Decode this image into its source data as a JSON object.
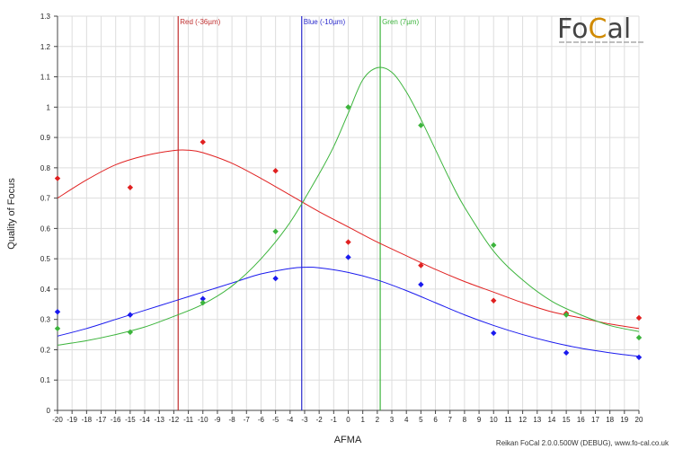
{
  "chart_data": {
    "type": "scatter",
    "xlabel": "AFMA",
    "ylabel": "Quality of Focus",
    "xlim": [
      -20,
      20
    ],
    "ylim": [
      0,
      1.3
    ],
    "xticks": [
      -20,
      -19,
      -18,
      -17,
      -16,
      -15,
      -14,
      -13,
      -12,
      -11,
      -10,
      -9,
      -8,
      -7,
      -6,
      -5,
      -4,
      -3,
      -2,
      -1,
      0,
      1,
      2,
      3,
      4,
      5,
      6,
      7,
      8,
      9,
      10,
      11,
      12,
      13,
      14,
      15,
      16,
      17,
      18,
      19,
      20
    ],
    "yticks": [
      0,
      0.1,
      0.2,
      0.3,
      0.4,
      0.5,
      0.6,
      0.7,
      0.8,
      0.9,
      1,
      1.1,
      1.2,
      1.3
    ],
    "grid": true,
    "series": [
      {
        "color": "#e02020",
        "points": [
          [
            -20,
            0.765
          ],
          [
            -15,
            0.735
          ],
          [
            -10,
            0.885
          ],
          [
            -5,
            0.79
          ],
          [
            0,
            0.555
          ],
          [
            5,
            0.478
          ],
          [
            10,
            0.362
          ],
          [
            15,
            0.32
          ],
          [
            20,
            0.305
          ]
        ],
        "curve": [
          [
            -20,
            0.7
          ],
          [
            -18,
            0.76
          ],
          [
            -16,
            0.81
          ],
          [
            -14,
            0.84
          ],
          [
            -12,
            0.857
          ],
          [
            -11,
            0.858
          ],
          [
            -10,
            0.85
          ],
          [
            -8,
            0.815
          ],
          [
            -6,
            0.765
          ],
          [
            -4,
            0.71
          ],
          [
            -2,
            0.655
          ],
          [
            0,
            0.605
          ],
          [
            2,
            0.555
          ],
          [
            4,
            0.51
          ],
          [
            6,
            0.465
          ],
          [
            8,
            0.425
          ],
          [
            10,
            0.39
          ],
          [
            12,
            0.355
          ],
          [
            14,
            0.325
          ],
          [
            16,
            0.305
          ],
          [
            18,
            0.285
          ],
          [
            20,
            0.27
          ]
        ]
      },
      {
        "color": "#1a1aee",
        "points": [
          [
            -20,
            0.325
          ],
          [
            -15,
            0.315
          ],
          [
            -10,
            0.368
          ],
          [
            -5,
            0.435
          ],
          [
            0,
            0.505
          ],
          [
            5,
            0.415
          ],
          [
            10,
            0.255
          ],
          [
            15,
            0.19
          ],
          [
            20,
            0.175
          ]
        ],
        "curve": [
          [
            -20,
            0.245
          ],
          [
            -18,
            0.27
          ],
          [
            -16,
            0.3
          ],
          [
            -14,
            0.33
          ],
          [
            -12,
            0.36
          ],
          [
            -10,
            0.39
          ],
          [
            -8,
            0.42
          ],
          [
            -6,
            0.45
          ],
          [
            -4,
            0.468
          ],
          [
            -3,
            0.472
          ],
          [
            -2,
            0.47
          ],
          [
            0,
            0.455
          ],
          [
            2,
            0.43
          ],
          [
            4,
            0.395
          ],
          [
            6,
            0.355
          ],
          [
            8,
            0.315
          ],
          [
            10,
            0.28
          ],
          [
            12,
            0.25
          ],
          [
            14,
            0.225
          ],
          [
            16,
            0.205
          ],
          [
            18,
            0.19
          ],
          [
            20,
            0.178
          ]
        ]
      },
      {
        "color": "#3cb43c",
        "points": [
          [
            -20,
            0.27
          ],
          [
            -15,
            0.258
          ],
          [
            -10,
            0.355
          ],
          [
            -5,
            0.59
          ],
          [
            0,
            1.0
          ],
          [
            5,
            0.94
          ],
          [
            10,
            0.545
          ],
          [
            15,
            0.315
          ],
          [
            20,
            0.24
          ]
        ],
        "curve": [
          [
            -20,
            0.215
          ],
          [
            -18,
            0.23
          ],
          [
            -16,
            0.25
          ],
          [
            -14,
            0.275
          ],
          [
            -12,
            0.31
          ],
          [
            -10,
            0.35
          ],
          [
            -8,
            0.41
          ],
          [
            -6,
            0.5
          ],
          [
            -4,
            0.62
          ],
          [
            -2,
            0.78
          ],
          [
            -1,
            0.87
          ],
          [
            0,
            0.98
          ],
          [
            1,
            1.09
          ],
          [
            2,
            1.13
          ],
          [
            3,
            1.115
          ],
          [
            4,
            1.05
          ],
          [
            5,
            0.96
          ],
          [
            6,
            0.86
          ],
          [
            7,
            0.76
          ],
          [
            8,
            0.67
          ],
          [
            10,
            0.525
          ],
          [
            12,
            0.43
          ],
          [
            14,
            0.36
          ],
          [
            16,
            0.315
          ],
          [
            18,
            0.28
          ],
          [
            20,
            0.26
          ]
        ]
      }
    ],
    "vlines": [
      {
        "x": -11.7,
        "label": "Red (-36µm)",
        "color": "#c03030"
      },
      {
        "x": -3.2,
        "label": "Blue (-10µm)",
        "color": "#2a2acc"
      },
      {
        "x": 2.2,
        "label": "Gren (7µm)",
        "color": "#3cb43c"
      }
    ]
  },
  "logo": {
    "text_left": "Fo",
    "text_mid": "C",
    "text_right": "al"
  },
  "footer": "Reikan FoCal 2.0.0.500W (DEBUG), www.fo-cal.co.uk"
}
